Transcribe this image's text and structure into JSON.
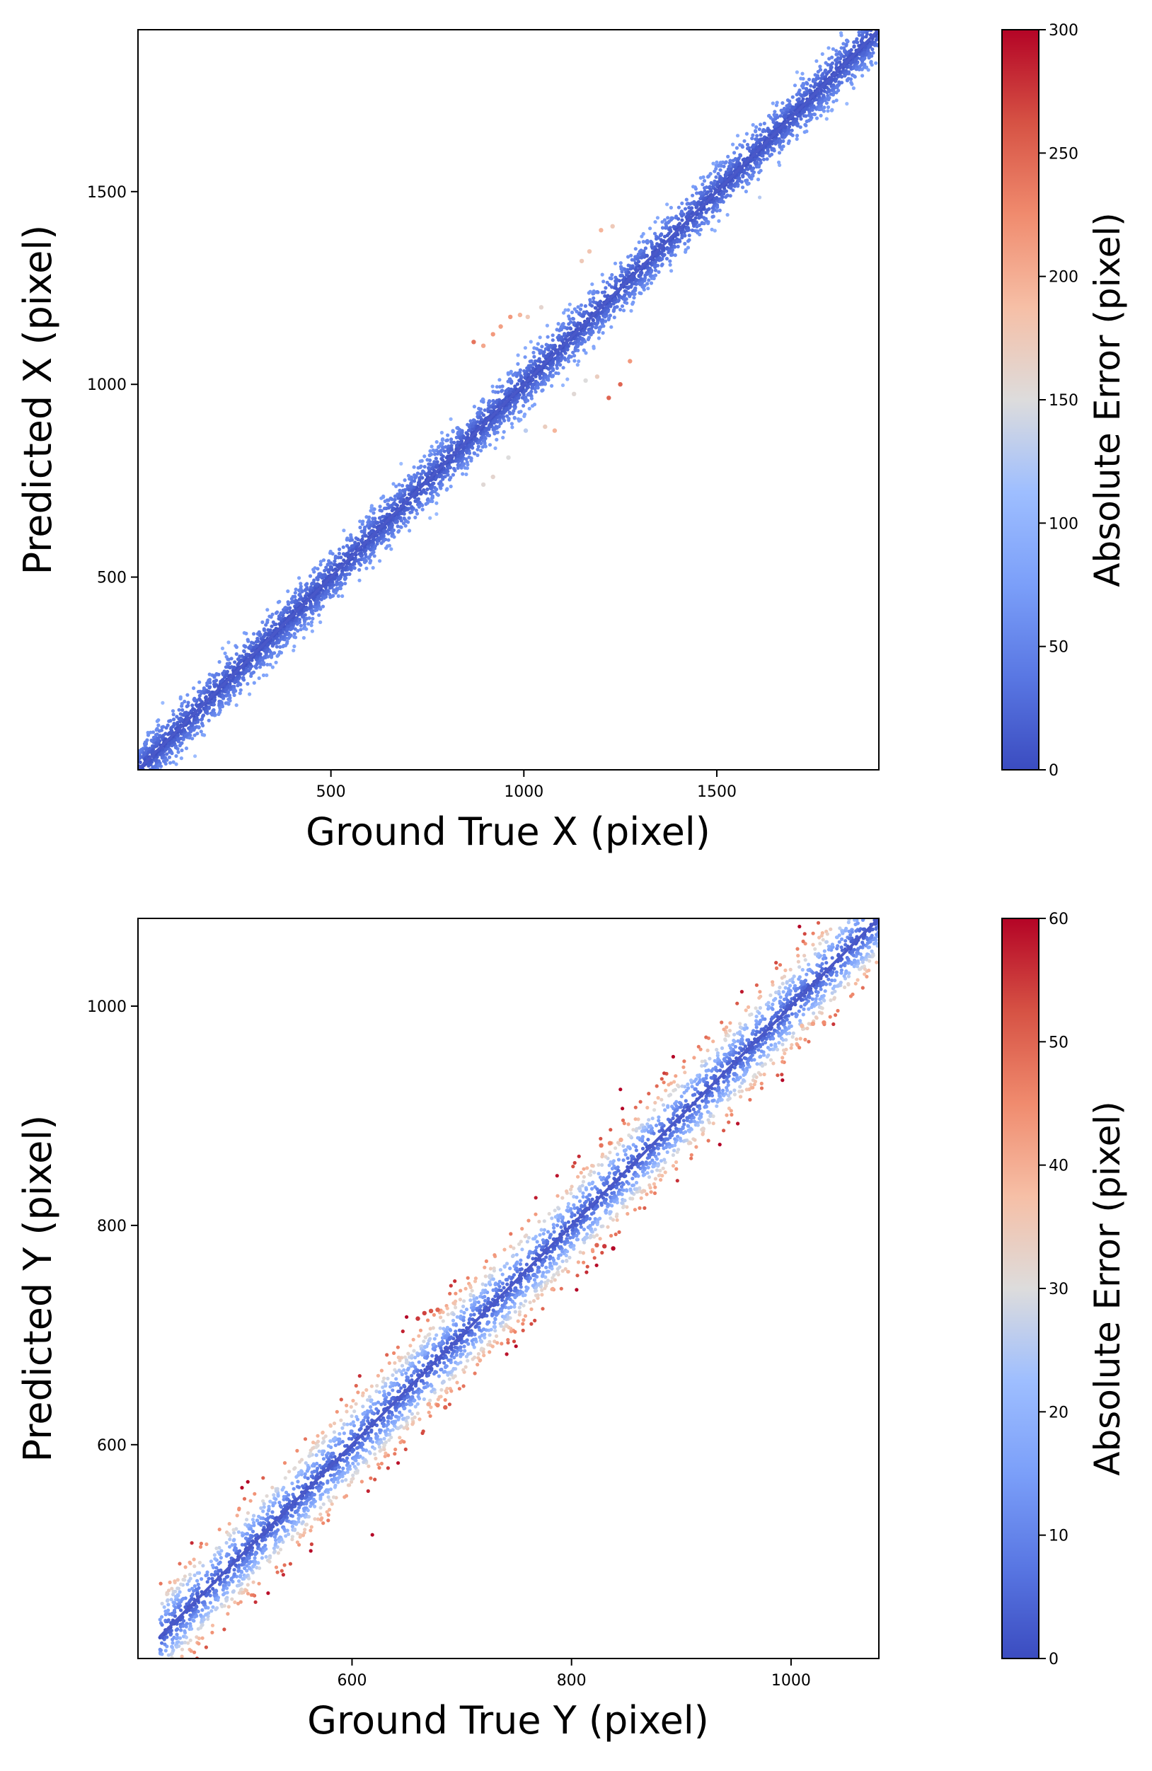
{
  "chart_data": [
    {
      "type": "scatter",
      "xlabel": "Ground True X (pixel)",
      "ylabel": "Predicted X (pixel)",
      "xlim": [
        0,
        1920
      ],
      "ylim": [
        0,
        1920
      ],
      "xticks": [
        500,
        1000,
        1500
      ],
      "yticks": [
        500,
        1000,
        1500
      ],
      "grid": false,
      "reference_line": {
        "from": [
          0,
          0
        ],
        "to": [
          1920,
          1920
        ]
      },
      "description_of_points": "dense band of points around y = x, colored by absolute error",
      "colorbar": {
        "label": "Absolute Error (pixel)",
        "range": [
          0,
          300
        ],
        "ticks": [
          0,
          50,
          100,
          150,
          200,
          250,
          300
        ],
        "colormap": "coolwarm"
      },
      "outliers": [
        {
          "x": 870,
          "y": 1110,
          "err": 240
        },
        {
          "x": 895,
          "y": 1100,
          "err": 205
        },
        {
          "x": 920,
          "y": 1130,
          "err": 215
        },
        {
          "x": 940,
          "y": 1150,
          "err": 210
        },
        {
          "x": 965,
          "y": 1175,
          "err": 215
        },
        {
          "x": 990,
          "y": 1180,
          "err": 195
        },
        {
          "x": 1010,
          "y": 1175,
          "err": 175
        },
        {
          "x": 1045,
          "y": 1200,
          "err": 160
        },
        {
          "x": 1150,
          "y": 1320,
          "err": 175
        },
        {
          "x": 1170,
          "y": 1345,
          "err": 180
        },
        {
          "x": 1200,
          "y": 1400,
          "err": 195
        },
        {
          "x": 1230,
          "y": 1410,
          "err": 175
        },
        {
          "x": 1160,
          "y": 1010,
          "err": 150
        },
        {
          "x": 1190,
          "y": 1020,
          "err": 170
        },
        {
          "x": 1220,
          "y": 965,
          "err": 250
        },
        {
          "x": 1250,
          "y": 1000,
          "err": 250
        },
        {
          "x": 1275,
          "y": 1060,
          "err": 215
        },
        {
          "x": 1130,
          "y": 975,
          "err": 155
        },
        {
          "x": 1055,
          "y": 890,
          "err": 170
        },
        {
          "x": 1080,
          "y": 880,
          "err": 195
        },
        {
          "x": 1005,
          "y": 880,
          "err": 130
        },
        {
          "x": 960,
          "y": 810,
          "err": 150
        },
        {
          "x": 920,
          "y": 760,
          "err": 160
        },
        {
          "x": 895,
          "y": 740,
          "err": 155
        }
      ]
    },
    {
      "type": "scatter",
      "xlabel": "Ground True Y (pixel)",
      "ylabel": "Predicted Y (pixel)",
      "xlim": [
        405,
        1080
      ],
      "ylim": [
        405,
        1080
      ],
      "xticks": [
        600,
        800,
        1000
      ],
      "yticks": [
        600,
        800,
        1000
      ],
      "grid": false,
      "reference_line": {
        "from": [
          425,
          425
        ],
        "to": [
          1080,
          1080
        ]
      },
      "description_of_points": "dense band of points around y = x, colored by absolute error",
      "colorbar": {
        "label": "Absolute Error (pixel)",
        "range": [
          0,
          60
        ],
        "ticks": [
          0,
          10,
          20,
          30,
          40,
          50,
          60
        ],
        "colormap": "coolwarm"
      },
      "outliers": [
        {
          "x": 660,
          "y": 715,
          "err": 55
        },
        {
          "x": 666,
          "y": 720,
          "err": 54
        },
        {
          "x": 672,
          "y": 722,
          "err": 52
        },
        {
          "x": 678,
          "y": 723,
          "err": 50
        },
        {
          "x": 685,
          "y": 634,
          "err": 50
        },
        {
          "x": 678,
          "y": 636,
          "err": 45
        },
        {
          "x": 670,
          "y": 637,
          "err": 40
        },
        {
          "x": 838,
          "y": 779,
          "err": 60
        },
        {
          "x": 830,
          "y": 781,
          "err": 55
        },
        {
          "x": 823,
          "y": 782,
          "err": 50
        },
        {
          "x": 827,
          "y": 873,
          "err": 48
        },
        {
          "x": 835,
          "y": 875,
          "err": 45
        },
        {
          "x": 845,
          "y": 878,
          "err": 40
        },
        {
          "x": 1030,
          "y": 985,
          "err": 45
        },
        {
          "x": 1020,
          "y": 984,
          "err": 42
        },
        {
          "x": 1010,
          "y": 982,
          "err": 38
        },
        {
          "x": 920,
          "y": 888,
          "err": 32
        },
        {
          "x": 650,
          "y": 675,
          "err": 28
        }
      ]
    }
  ]
}
